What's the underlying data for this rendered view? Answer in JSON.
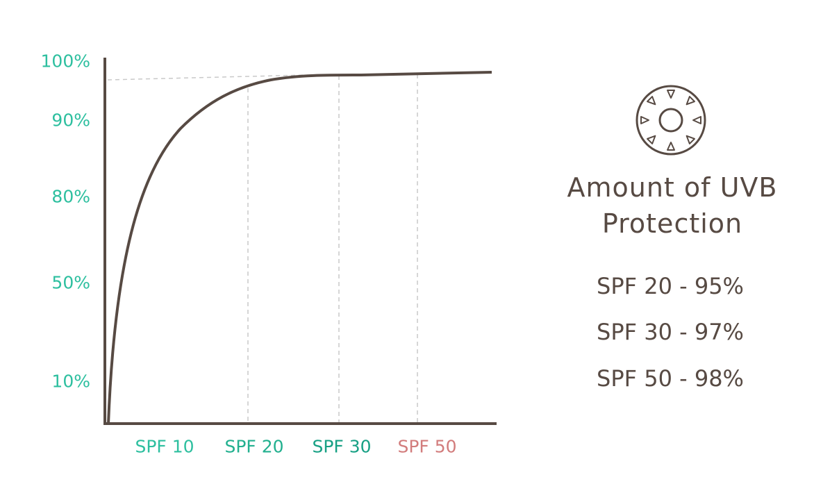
{
  "y_axis_labels": [
    "100%",
    "90%",
    "80%",
    "50%",
    "10%"
  ],
  "x_axis_labels": [
    "SPF 10",
    "SPF 20",
    "SPF 30",
    "SPF 50"
  ],
  "panel": {
    "title_lines": [
      "Amount of UVB",
      "Protection"
    ],
    "items": [
      "SPF 20 - 95%",
      "SPF 30 - 97%",
      "SPF 50 - 98%"
    ]
  }
}
